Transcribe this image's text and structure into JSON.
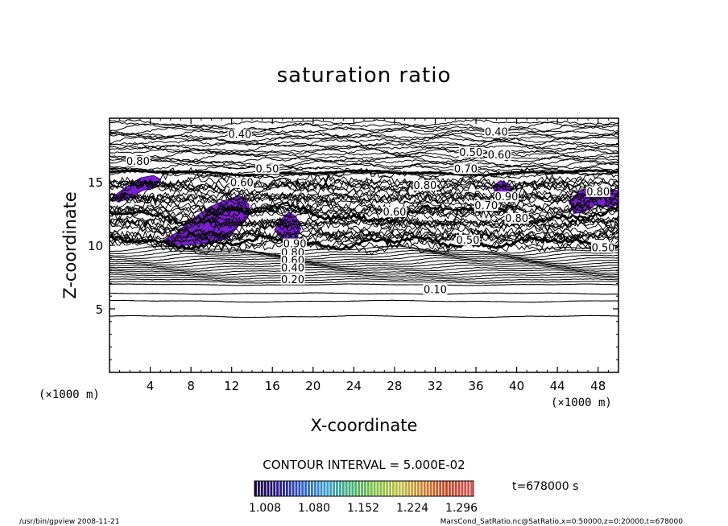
{
  "chart_data": {
    "type": "contour",
    "title": "saturation ratio",
    "xlabel": "X-coordinate",
    "ylabel": "Z-coordinate",
    "x_unit_left": "(×1000 m)",
    "x_unit_right": "(×1000 m)",
    "xlim": [
      0,
      50
    ],
    "ylim": [
      0,
      20
    ],
    "x_ticks": [
      4,
      8,
      12,
      16,
      20,
      24,
      28,
      32,
      36,
      40,
      44,
      48
    ],
    "y_ticks": [
      5,
      10,
      15
    ],
    "contour_interval_text": "CONTOUR INTERVAL = 5.000E-02",
    "time_text": "t=678000 s",
    "colorbar": {
      "ticks": [
        "1.008",
        "1.080",
        "1.152",
        "1.224",
        "1.296"
      ],
      "colors": [
        "#1a0040",
        "#2a1a8a",
        "#2a5fd0",
        "#39a0c8",
        "#40b070",
        "#7cc040",
        "#c0c040",
        "#d08030",
        "#c04020",
        "#e05050"
      ]
    },
    "contour_labels": [
      {
        "text": "0.40",
        "x": 12.8,
        "z": 18.5
      },
      {
        "text": "0.40",
        "x": 38.0,
        "z": 18.7
      },
      {
        "text": "0.50",
        "x": 35.5,
        "z": 17.1
      },
      {
        "text": "0.60",
        "x": 38.3,
        "z": 16.9
      },
      {
        "text": "0.80",
        "x": 2.8,
        "z": 16.4
      },
      {
        "text": "0.50",
        "x": 15.5,
        "z": 15.8
      },
      {
        "text": "0.70",
        "x": 35.0,
        "z": 15.8
      },
      {
        "text": "0.60",
        "x": 13.0,
        "z": 14.7
      },
      {
        "text": "0.80",
        "x": 31.0,
        "z": 14.5
      },
      {
        "text": "0.90",
        "x": 39.0,
        "z": 13.6
      },
      {
        "text": "0.70",
        "x": 37.0,
        "z": 12.9
      },
      {
        "text": "0.60",
        "x": 28.0,
        "z": 12.4
      },
      {
        "text": "0.80",
        "x": 40.0,
        "z": 11.9
      },
      {
        "text": "0.50",
        "x": 35.2,
        "z": 10.2
      },
      {
        "text": "0.90",
        "x": 18.2,
        "z": 9.9
      },
      {
        "text": "0.80",
        "x": 18.0,
        "z": 9.2
      },
      {
        "text": "0.60",
        "x": 18.0,
        "z": 8.6
      },
      {
        "text": "0.40",
        "x": 18.0,
        "z": 8.0
      },
      {
        "text": "0.20",
        "x": 18.0,
        "z": 7.1
      },
      {
        "text": "0.10",
        "x": 32.0,
        "z": 6.3
      },
      {
        "text": "0.80",
        "x": 48.0,
        "z": 14.0
      },
      {
        "text": "0.50",
        "x": 48.5,
        "z": 9.6
      }
    ],
    "supersaturated_regions": [
      {
        "x": [
          0.3,
          1.5,
          3.0,
          4.3,
          5.0,
          4.5,
          3.2,
          2.0,
          0.8,
          0.3
        ],
        "z": [
          13.8,
          14.5,
          15.3,
          15.5,
          15.2,
          14.6,
          14.3,
          13.7,
          13.4,
          13.8
        ]
      },
      {
        "x": [
          5.3,
          6.6,
          8.0,
          9.8,
          11.5,
          12.8,
          13.7,
          13.6,
          12.5,
          11.8,
          10.6,
          9.0,
          7.5,
          6.3,
          5.3
        ],
        "z": [
          10.4,
          11.0,
          12.0,
          13.0,
          13.6,
          13.9,
          13.2,
          12.2,
          11.4,
          10.6,
          10.3,
          10.1,
          10.0,
          10.0,
          10.4
        ]
      },
      {
        "x": [
          16.2,
          16.8,
          17.6,
          18.3,
          18.8,
          18.4,
          17.5,
          16.6,
          16.2
        ],
        "z": [
          11.2,
          12.0,
          12.6,
          12.3,
          11.3,
          10.6,
          10.4,
          10.8,
          11.2
        ]
      },
      {
        "x": [
          37.6,
          38.4,
          39.3,
          39.7,
          38.8,
          37.9,
          37.6
        ],
        "z": [
          14.6,
          15.1,
          14.8,
          14.0,
          13.8,
          14.2,
          14.6
        ]
      },
      {
        "x": [
          45.2,
          46.2,
          47.5,
          48.8,
          50.0,
          50.0,
          49.0,
          47.8,
          46.6,
          45.6,
          45.2
        ],
        "z": [
          13.5,
          14.3,
          14.6,
          14.5,
          14.3,
          13.2,
          13.0,
          13.2,
          12.6,
          12.5,
          13.5
        ]
      }
    ]
  },
  "footer": {
    "left": "/usr/bin/gpview  2008-11-21",
    "right": "MarsCond_SatRatio.nc@SatRatio,x=0:50000,z=0:20000,t=678000"
  }
}
